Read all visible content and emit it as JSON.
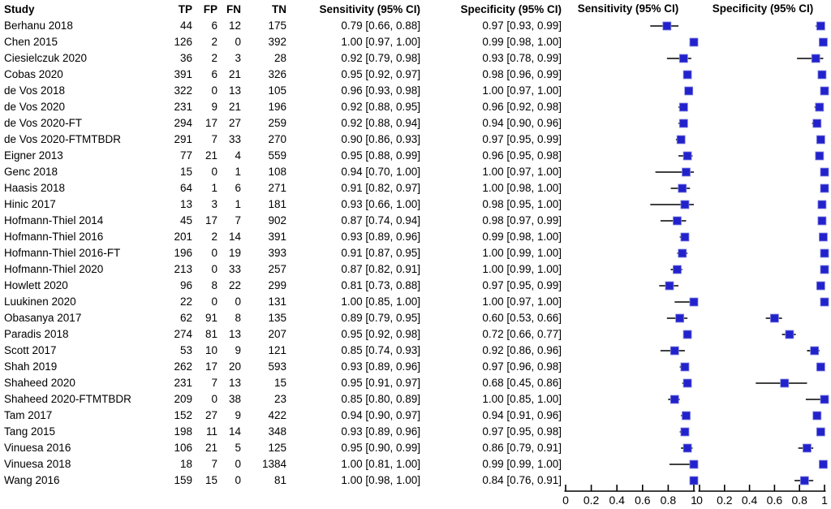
{
  "table": {
    "headers": {
      "study": "Study",
      "tp": "TP",
      "fp": "FP",
      "fn": "FN",
      "tn": "TN",
      "sens": "Sensitivity (95% CI)",
      "spec": "Specificity (95% CI)"
    },
    "plot_headers": {
      "sens": "Sensitivity (95% CI)",
      "spec": "Specificity (95% CI)"
    }
  },
  "chart_data": {
    "type": "scatter",
    "subtype": "paired-forest-plot",
    "title": "",
    "xlabel": "",
    "ylabel": "",
    "axis_range": [
      0,
      1
    ],
    "axis_ticks": [
      0,
      0.2,
      0.4,
      0.6,
      0.8,
      1
    ],
    "axis_tick_labels": [
      "0",
      "0.2",
      "0.4",
      "0.6",
      "0.8",
      "1"
    ],
    "grid": "off",
    "legend": "none",
    "marker_color": "#2222CC",
    "marker_edge_color": "#8585E2",
    "ci_line_color": "#000000",
    "studies": [
      {
        "study": "Berhanu 2018",
        "tp": 44,
        "fp": 6,
        "fn": 12,
        "tn": 175,
        "sens": 0.79,
        "sens_lo": 0.66,
        "sens_hi": 0.88,
        "sens_label": "0.79 [0.66, 0.88]",
        "spec": 0.97,
        "spec_lo": 0.93,
        "spec_hi": 0.99,
        "spec_label": "0.97 [0.93, 0.99]"
      },
      {
        "study": "Chen 2015",
        "tp": 126,
        "fp": 2,
        "fn": 0,
        "tn": 392,
        "sens": 1.0,
        "sens_lo": 0.97,
        "sens_hi": 1.0,
        "sens_label": "1.00 [0.97, 1.00]",
        "spec": 0.99,
        "spec_lo": 0.98,
        "spec_hi": 1.0,
        "spec_label": "0.99 [0.98, 1.00]"
      },
      {
        "study": "Ciesielczuk 2020",
        "tp": 36,
        "fp": 2,
        "fn": 3,
        "tn": 28,
        "sens": 0.92,
        "sens_lo": 0.79,
        "sens_hi": 0.98,
        "sens_label": "0.92 [0.79, 0.98]",
        "spec": 0.93,
        "spec_lo": 0.78,
        "spec_hi": 0.99,
        "spec_label": "0.93 [0.78, 0.99]"
      },
      {
        "study": "Cobas 2020",
        "tp": 391,
        "fp": 6,
        "fn": 21,
        "tn": 326,
        "sens": 0.95,
        "sens_lo": 0.92,
        "sens_hi": 0.97,
        "sens_label": "0.95 [0.92, 0.97]",
        "spec": 0.98,
        "spec_lo": 0.96,
        "spec_hi": 0.99,
        "spec_label": "0.98 [0.96, 0.99]"
      },
      {
        "study": "de Vos 2018",
        "tp": 322,
        "fp": 0,
        "fn": 13,
        "tn": 105,
        "sens": 0.96,
        "sens_lo": 0.93,
        "sens_hi": 0.98,
        "sens_label": "0.96 [0.93, 0.98]",
        "spec": 1.0,
        "spec_lo": 0.97,
        "spec_hi": 1.0,
        "spec_label": "1.00 [0.97, 1.00]"
      },
      {
        "study": "de Vos 2020",
        "tp": 231,
        "fp": 9,
        "fn": 21,
        "tn": 196,
        "sens": 0.92,
        "sens_lo": 0.88,
        "sens_hi": 0.95,
        "sens_label": "0.92 [0.88, 0.95]",
        "spec": 0.96,
        "spec_lo": 0.92,
        "spec_hi": 0.98,
        "spec_label": "0.96 [0.92, 0.98]"
      },
      {
        "study": "de Vos 2020-FT",
        "tp": 294,
        "fp": 17,
        "fn": 27,
        "tn": 259,
        "sens": 0.92,
        "sens_lo": 0.88,
        "sens_hi": 0.94,
        "sens_label": "0.92 [0.88, 0.94]",
        "spec": 0.94,
        "spec_lo": 0.9,
        "spec_hi": 0.96,
        "spec_label": "0.94 [0.90, 0.96]"
      },
      {
        "study": "de Vos 2020-FTMTBDR",
        "tp": 291,
        "fp": 7,
        "fn": 33,
        "tn": 270,
        "sens": 0.9,
        "sens_lo": 0.86,
        "sens_hi": 0.93,
        "sens_label": "0.90 [0.86, 0.93]",
        "spec": 0.97,
        "spec_lo": 0.95,
        "spec_hi": 0.99,
        "spec_label": "0.97 [0.95, 0.99]"
      },
      {
        "study": "Eigner 2013",
        "tp": 77,
        "fp": 21,
        "fn": 4,
        "tn": 559,
        "sens": 0.95,
        "sens_lo": 0.88,
        "sens_hi": 0.99,
        "sens_label": "0.95 [0.88, 0.99]",
        "spec": 0.96,
        "spec_lo": 0.95,
        "spec_hi": 0.98,
        "spec_label": "0.96 [0.95, 0.98]"
      },
      {
        "study": "Genc 2018",
        "tp": 15,
        "fp": 0,
        "fn": 1,
        "tn": 108,
        "sens": 0.94,
        "sens_lo": 0.7,
        "sens_hi": 1.0,
        "sens_label": "0.94 [0.70, 1.00]",
        "spec": 1.0,
        "spec_lo": 0.97,
        "spec_hi": 1.0,
        "spec_label": "1.00 [0.97, 1.00]"
      },
      {
        "study": "Haasis 2018",
        "tp": 64,
        "fp": 1,
        "fn": 6,
        "tn": 271,
        "sens": 0.91,
        "sens_lo": 0.82,
        "sens_hi": 0.97,
        "sens_label": "0.91 [0.82, 0.97]",
        "spec": 1.0,
        "spec_lo": 0.98,
        "spec_hi": 1.0,
        "spec_label": "1.00 [0.98, 1.00]"
      },
      {
        "study": "Hinic 2017",
        "tp": 13,
        "fp": 3,
        "fn": 1,
        "tn": 181,
        "sens": 0.93,
        "sens_lo": 0.66,
        "sens_hi": 1.0,
        "sens_label": "0.93 [0.66, 1.00]",
        "spec": 0.98,
        "spec_lo": 0.95,
        "spec_hi": 1.0,
        "spec_label": "0.98 [0.95, 1.00]"
      },
      {
        "study": "Hofmann-Thiel 2014",
        "tp": 45,
        "fp": 17,
        "fn": 7,
        "tn": 902,
        "sens": 0.87,
        "sens_lo": 0.74,
        "sens_hi": 0.94,
        "sens_label": "0.87 [0.74, 0.94]",
        "spec": 0.98,
        "spec_lo": 0.97,
        "spec_hi": 0.99,
        "spec_label": "0.98 [0.97, 0.99]"
      },
      {
        "study": "Hofmann-Thiel 2016",
        "tp": 201,
        "fp": 2,
        "fn": 14,
        "tn": 391,
        "sens": 0.93,
        "sens_lo": 0.89,
        "sens_hi": 0.96,
        "sens_label": "0.93 [0.89, 0.96]",
        "spec": 0.99,
        "spec_lo": 0.98,
        "spec_hi": 1.0,
        "spec_label": "0.99 [0.98, 1.00]"
      },
      {
        "study": "Hofmann-Thiel 2016-FT",
        "tp": 196,
        "fp": 0,
        "fn": 19,
        "tn": 393,
        "sens": 0.91,
        "sens_lo": 0.87,
        "sens_hi": 0.95,
        "sens_label": "0.91 [0.87, 0.95]",
        "spec": 1.0,
        "spec_lo": 0.99,
        "spec_hi": 1.0,
        "spec_label": "1.00 [0.99, 1.00]"
      },
      {
        "study": "Hofmann-Thiel 2020",
        "tp": 213,
        "fp": 0,
        "fn": 33,
        "tn": 257,
        "sens": 0.87,
        "sens_lo": 0.82,
        "sens_hi": 0.91,
        "sens_label": "0.87 [0.82, 0.91]",
        "spec": 1.0,
        "spec_lo": 0.99,
        "spec_hi": 1.0,
        "spec_label": "1.00 [0.99, 1.00]"
      },
      {
        "study": "Howlett 2020",
        "tp": 96,
        "fp": 8,
        "fn": 22,
        "tn": 299,
        "sens": 0.81,
        "sens_lo": 0.73,
        "sens_hi": 0.88,
        "sens_label": "0.81 [0.73, 0.88]",
        "spec": 0.97,
        "spec_lo": 0.95,
        "spec_hi": 0.99,
        "spec_label": "0.97 [0.95, 0.99]"
      },
      {
        "study": "Luukinen 2020",
        "tp": 22,
        "fp": 0,
        "fn": 0,
        "tn": 131,
        "sens": 1.0,
        "sens_lo": 0.85,
        "sens_hi": 1.0,
        "sens_label": "1.00 [0.85, 1.00]",
        "spec": 1.0,
        "spec_lo": 0.97,
        "spec_hi": 1.0,
        "spec_label": "1.00 [0.97, 1.00]"
      },
      {
        "study": "Obasanya 2017",
        "tp": 62,
        "fp": 91,
        "fn": 8,
        "tn": 135,
        "sens": 0.89,
        "sens_lo": 0.79,
        "sens_hi": 0.95,
        "sens_label": "0.89 [0.79, 0.95]",
        "spec": 0.6,
        "spec_lo": 0.53,
        "spec_hi": 0.66,
        "spec_label": "0.60 [0.53, 0.66]"
      },
      {
        "study": "Paradis 2018",
        "tp": 274,
        "fp": 81,
        "fn": 13,
        "tn": 207,
        "sens": 0.95,
        "sens_lo": 0.92,
        "sens_hi": 0.98,
        "sens_label": "0.95 [0.92, 0.98]",
        "spec": 0.72,
        "spec_lo": 0.66,
        "spec_hi": 0.77,
        "spec_label": "0.72 [0.66, 0.77]"
      },
      {
        "study": "Scott 2017",
        "tp": 53,
        "fp": 10,
        "fn": 9,
        "tn": 121,
        "sens": 0.85,
        "sens_lo": 0.74,
        "sens_hi": 0.93,
        "sens_label": "0.85 [0.74, 0.93]",
        "spec": 0.92,
        "spec_lo": 0.86,
        "spec_hi": 0.96,
        "spec_label": "0.92 [0.86, 0.96]"
      },
      {
        "study": "Shah 2019",
        "tp": 262,
        "fp": 17,
        "fn": 20,
        "tn": 593,
        "sens": 0.93,
        "sens_lo": 0.89,
        "sens_hi": 0.96,
        "sens_label": "0.93 [0.89, 0.96]",
        "spec": 0.97,
        "spec_lo": 0.96,
        "spec_hi": 0.98,
        "spec_label": "0.97 [0.96, 0.98]"
      },
      {
        "study": "Shaheed 2020",
        "tp": 231,
        "fp": 7,
        "fn": 13,
        "tn": 15,
        "sens": 0.95,
        "sens_lo": 0.91,
        "sens_hi": 0.97,
        "sens_label": "0.95 [0.91, 0.97]",
        "spec": 0.68,
        "spec_lo": 0.45,
        "spec_hi": 0.86,
        "spec_label": "0.68 [0.45, 0.86]"
      },
      {
        "study": "Shaheed 2020-FTMTBDR",
        "tp": 209,
        "fp": 0,
        "fn": 38,
        "tn": 23,
        "sens": 0.85,
        "sens_lo": 0.8,
        "sens_hi": 0.89,
        "sens_label": "0.85 [0.80, 0.89]",
        "spec": 1.0,
        "spec_lo": 0.85,
        "spec_hi": 1.0,
        "spec_label": "1.00 [0.85, 1.00]"
      },
      {
        "study": "Tam 2017",
        "tp": 152,
        "fp": 27,
        "fn": 9,
        "tn": 422,
        "sens": 0.94,
        "sens_lo": 0.9,
        "sens_hi": 0.97,
        "sens_label": "0.94 [0.90, 0.97]",
        "spec": 0.94,
        "spec_lo": 0.91,
        "spec_hi": 0.96,
        "spec_label": "0.94 [0.91, 0.96]"
      },
      {
        "study": "Tang 2015",
        "tp": 198,
        "fp": 11,
        "fn": 14,
        "tn": 348,
        "sens": 0.93,
        "sens_lo": 0.89,
        "sens_hi": 0.96,
        "sens_label": "0.93 [0.89, 0.96]",
        "spec": 0.97,
        "spec_lo": 0.95,
        "spec_hi": 0.98,
        "spec_label": "0.97 [0.95, 0.98]"
      },
      {
        "study": "Vinuesa 2016",
        "tp": 106,
        "fp": 21,
        "fn": 5,
        "tn": 125,
        "sens": 0.95,
        "sens_lo": 0.9,
        "sens_hi": 0.99,
        "sens_label": "0.95 [0.90, 0.99]",
        "spec": 0.86,
        "spec_lo": 0.79,
        "spec_hi": 0.91,
        "spec_label": "0.86 [0.79, 0.91]"
      },
      {
        "study": "Vinuesa 2018",
        "tp": 18,
        "fp": 7,
        "fn": 0,
        "tn": 1384,
        "sens": 1.0,
        "sens_lo": 0.81,
        "sens_hi": 1.0,
        "sens_label": "1.00 [0.81, 1.00]",
        "spec": 0.99,
        "spec_lo": 0.99,
        "spec_hi": 1.0,
        "spec_label": "0.99 [0.99, 1.00]"
      },
      {
        "study": "Wang 2016",
        "tp": 159,
        "fp": 15,
        "fn": 0,
        "tn": 81,
        "sens": 1.0,
        "sens_lo": 0.98,
        "sens_hi": 1.0,
        "sens_label": "1.00 [0.98, 1.00]",
        "spec": 0.84,
        "spec_lo": 0.76,
        "spec_hi": 0.91,
        "spec_label": "0.84 [0.76, 0.91]"
      }
    ]
  }
}
